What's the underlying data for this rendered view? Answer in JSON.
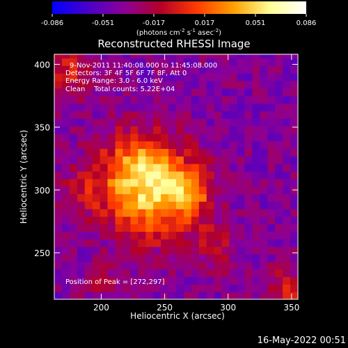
{
  "chart_data": {
    "type": "heatmap",
    "title": "Reconstructed RHESSI Image",
    "xlabel": "Heliocentric X (arcsec)",
    "ylabel": "Heliocentric Y (arcsec)",
    "xlim": [
      163,
      355
    ],
    "ylim": [
      213,
      408
    ],
    "xticks": [
      200,
      250,
      300,
      350
    ],
    "yticks": [
      250,
      300,
      350,
      400
    ],
    "colorbar": {
      "min": -0.086,
      "max": 0.086,
      "ticks": [
        "-0.086",
        "-0.051",
        "-0.017",
        "0.017",
        "0.051",
        "0.086"
      ],
      "unit_prefix": "(photons cm",
      "unit_sup1": "-2",
      "unit_mid": " s",
      "unit_sup2": "-1",
      "unit_mid2": " asec",
      "unit_sup3": "-2",
      "unit_suffix": ")",
      "colors": [
        "#0000ff",
        "#4b00c8",
        "#8c0096",
        "#b40028",
        "#ff3c00",
        "#ffa000",
        "#ffff96",
        "#ffffff"
      ]
    },
    "info_lines": [
      "9-Nov-2011 11:40:08.000 to 11:45:08.000",
      "Detectors: 3F 4F 5F 6F 7F 8F, Att 0",
      "Energy Range: 3.0 - 6.0 keV",
      "Clean    Total counts: 5.22E+04"
    ],
    "peak_label": "Position of Peak = [272,297]",
    "peak": [
      272,
      297
    ],
    "sources": [
      {
        "x": 240,
        "y": 300,
        "amp": 0.09,
        "sigma": 26
      },
      {
        "x": 270,
        "y": 297,
        "amp": 0.035,
        "sigma": 12
      },
      {
        "x": 225,
        "y": 325,
        "amp": 0.03,
        "sigma": 18
      },
      {
        "x": 175,
        "y": 395,
        "amp": 0.035,
        "sigma": 14
      },
      {
        "x": 185,
        "y": 300,
        "amp": 0.02,
        "sigma": 16
      },
      {
        "x": 290,
        "y": 255,
        "amp": 0.022,
        "sigma": 14
      },
      {
        "x": 345,
        "y": 222,
        "amp": 0.035,
        "sigma": 12
      },
      {
        "x": 200,
        "y": 225,
        "amp": 0.015,
        "sigma": 12
      }
    ],
    "background": -0.04
  },
  "footer": {
    "timestamp": "16-May-2022 00:51"
  }
}
